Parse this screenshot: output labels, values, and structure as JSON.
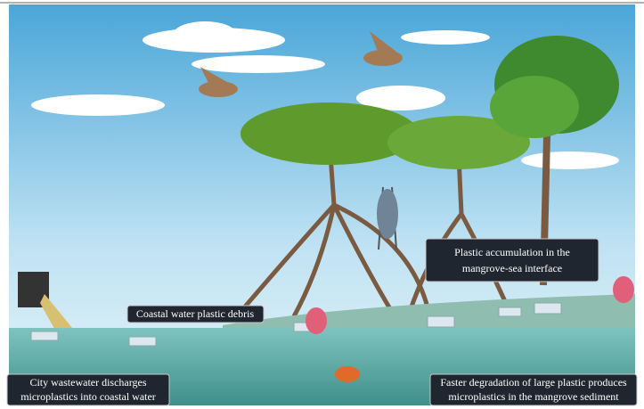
{
  "labels": [
    {
      "lines": [
        "Coastal water plastic debris"
      ]
    },
    {
      "lines": [
        "Plastic accumulation in the",
        "mangrove-sea interface"
      ]
    },
    {
      "lines": [
        "City wastewater discharges",
        "microplastics into coastal water"
      ]
    },
    {
      "lines": [
        "Faster degradation of large plastic produces",
        "microplastics in the mangrove sediment"
      ]
    }
  ]
}
